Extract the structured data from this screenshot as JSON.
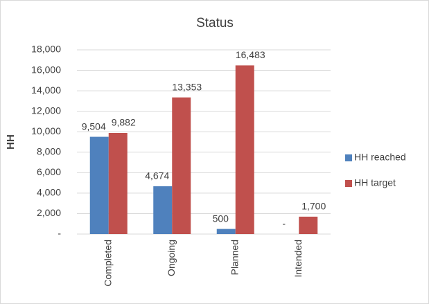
{
  "chart_data": {
    "type": "bar",
    "title": "Status",
    "y_label": "HH",
    "categories": [
      "Completed",
      "Ongoing",
      "Planned",
      "Intended"
    ],
    "series": [
      {
        "name": "HH reached",
        "color": "#4f81bd",
        "values": [
          9504,
          4674,
          500,
          0
        ],
        "value_labels": [
          "9,504",
          "4,674",
          "500",
          "-"
        ]
      },
      {
        "name": "HH target",
        "color": "#c0504d",
        "values": [
          9882,
          13353,
          16483,
          1700
        ],
        "value_labels": [
          "9,882",
          "13,353",
          "16,483",
          "1,700"
        ]
      }
    ],
    "ylim": [
      0,
      18000
    ],
    "yticks": [
      {
        "value": 0,
        "label": "-"
      },
      {
        "value": 2000,
        "label": "2,000"
      },
      {
        "value": 4000,
        "label": "4,000"
      },
      {
        "value": 6000,
        "label": "6,000"
      },
      {
        "value": 8000,
        "label": "8,000"
      },
      {
        "value": 10000,
        "label": "10,000"
      },
      {
        "value": 12000,
        "label": "12,000"
      },
      {
        "value": 14000,
        "label": "14,000"
      },
      {
        "value": 16000,
        "label": "16,000"
      },
      {
        "value": 18000,
        "label": "18,000"
      }
    ],
    "grid": true,
    "legend": "right"
  }
}
